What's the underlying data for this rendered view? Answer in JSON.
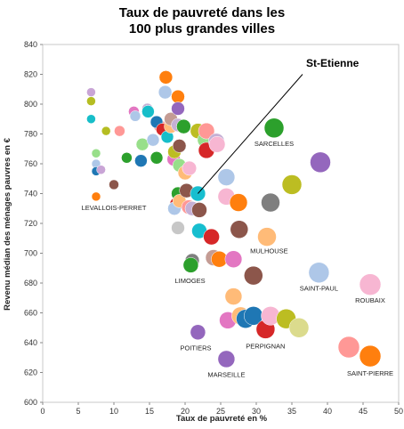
{
  "chart_data": {
    "type": "scatter",
    "title_lines": [
      "Taux de pauvreté dans les",
      "100 plus grandes villes"
    ],
    "xlabel": "Taux de pauvreté en %",
    "ylabel": "Revenu médian des ménages pauvres en €",
    "xlim": [
      0,
      50
    ],
    "ylim": [
      600,
      840
    ],
    "x_ticks": [
      0,
      5,
      10,
      15,
      20,
      25,
      30,
      35,
      40,
      45,
      50
    ],
    "y_ticks": [
      600,
      620,
      640,
      660,
      680,
      700,
      720,
      740,
      760,
      780,
      800,
      820,
      840
    ],
    "grid": false,
    "points": [
      {
        "x": 6.8,
        "y": 808,
        "r": 5,
        "color": "#c9a5d6"
      },
      {
        "x": 6.8,
        "y": 802,
        "r": 5,
        "color": "#b5bd22"
      },
      {
        "x": 6.8,
        "y": 790,
        "r": 5,
        "color": "#17bec9"
      },
      {
        "x": 7.5,
        "y": 767,
        "r": 5,
        "color": "#98df8a"
      },
      {
        "x": 7.5,
        "y": 760,
        "r": 5,
        "color": "#aec7e8"
      },
      {
        "x": 7.5,
        "y": 755,
        "r": 5,
        "color": "#1f77b4"
      },
      {
        "x": 8.2,
        "y": 756,
        "r": 5,
        "color": "#c9a5d6"
      },
      {
        "x": 7.5,
        "y": 738,
        "r": 5,
        "color": "#ff7f0e"
      },
      {
        "x": 8.9,
        "y": 782,
        "r": 5,
        "color": "#b5bd22"
      },
      {
        "x": 10.0,
        "y": 746,
        "r": 5.5,
        "color": "#8c564b"
      },
      {
        "x": 10.8,
        "y": 782,
        "r": 6,
        "color": "#ff9896"
      },
      {
        "x": 11.8,
        "y": 764,
        "r": 6,
        "color": "#2ca02c"
      },
      {
        "x": 12.8,
        "y": 795,
        "r": 6,
        "color": "#e377c2"
      },
      {
        "x": 13.0,
        "y": 792,
        "r": 6,
        "color": "#aec7e8"
      },
      {
        "x": 13.8,
        "y": 762,
        "r": 7,
        "color": "#1f77b4"
      },
      {
        "x": 14.0,
        "y": 773,
        "r": 7,
        "color": "#98df8a"
      },
      {
        "x": 14.7,
        "y": 797,
        "r": 6,
        "color": "#c5b0d5"
      },
      {
        "x": 14.8,
        "y": 795,
        "r": 7,
        "color": "#17bec9"
      },
      {
        "x": 15.5,
        "y": 776,
        "r": 7,
        "color": "#aec7e8"
      },
      {
        "x": 16.0,
        "y": 764,
        "r": 7,
        "color": "#2ca02c"
      },
      {
        "x": 16.5,
        "y": 785,
        "r": 7,
        "color": "#ff9896"
      },
      {
        "x": 16.0,
        "y": 788,
        "r": 7,
        "color": "#1f77b4"
      },
      {
        "x": 16.8,
        "y": 783,
        "r": 7,
        "color": "#d62728"
      },
      {
        "x": 17.3,
        "y": 818,
        "r": 7.5,
        "color": "#ff7f0e"
      },
      {
        "x": 17.2,
        "y": 808,
        "r": 7.5,
        "color": "#aec7e8"
      },
      {
        "x": 17.5,
        "y": 778,
        "r": 7,
        "color": "#17bec9"
      },
      {
        "x": 18.0,
        "y": 785,
        "r": 7.5,
        "color": "#ffbb78"
      },
      {
        "x": 18.0,
        "y": 790,
        "r": 7.5,
        "color": "#c49c94"
      },
      {
        "x": 18.4,
        "y": 763,
        "r": 7.5,
        "color": "#e377c2"
      },
      {
        "x": 18.5,
        "y": 768,
        "r": 7.5,
        "color": "#bcbd22"
      },
      {
        "x": 19.0,
        "y": 805,
        "r": 7.5,
        "color": "#ff7f0e"
      },
      {
        "x": 19.0,
        "y": 797,
        "r": 7.5,
        "color": "#9467bd"
      },
      {
        "x": 19.0,
        "y": 786,
        "r": 7.5,
        "color": "#c5b0d5"
      },
      {
        "x": 19.2,
        "y": 772,
        "r": 7.5,
        "color": "#8c564b"
      },
      {
        "x": 19.2,
        "y": 759,
        "r": 7.5,
        "color": "#98df8a"
      },
      {
        "x": 19.0,
        "y": 740,
        "r": 7.5,
        "color": "#2ca02c"
      },
      {
        "x": 18.8,
        "y": 733,
        "r": 7.5,
        "color": "#d62728"
      },
      {
        "x": 18.5,
        "y": 730,
        "r": 7.5,
        "color": "#aec7e8"
      },
      {
        "x": 19.2,
        "y": 735,
        "r": 7.5,
        "color": "#ffbb78"
      },
      {
        "x": 19.0,
        "y": 717,
        "r": 7.5,
        "color": "#c7c7c7"
      },
      {
        "x": 19.8,
        "y": 785,
        "r": 8,
        "color": "#2ca02c"
      },
      {
        "x": 20.0,
        "y": 754,
        "r": 8,
        "color": "#ffbb78"
      },
      {
        "x": 20.2,
        "y": 742,
        "r": 8,
        "color": "#8c564b"
      },
      {
        "x": 20.5,
        "y": 731,
        "r": 8,
        "color": "#ff9896"
      },
      {
        "x": 20.6,
        "y": 757,
        "r": 8,
        "color": "#f7b6d2"
      },
      {
        "x": 21.0,
        "y": 730,
        "r": 8,
        "color": "#c5b0d5"
      },
      {
        "x": 21.0,
        "y": 695,
        "r": 8,
        "color": "#7f7f7f"
      },
      {
        "x": 20.8,
        "y": 692,
        "r": 8.5,
        "color": "#2ca02c"
      },
      {
        "x": 21.8,
        "y": 782,
        "r": 8.5,
        "color": "#bcbd22"
      },
      {
        "x": 21.8,
        "y": 740,
        "r": 8.5,
        "color": "#17becf"
      },
      {
        "x": 22.0,
        "y": 729,
        "r": 8.5,
        "color": "#8c564b"
      },
      {
        "x": 22.0,
        "y": 715,
        "r": 8.5,
        "color": "#17becf"
      },
      {
        "x": 22.8,
        "y": 776,
        "r": 8.5,
        "color": "#98df8a"
      },
      {
        "x": 23.0,
        "y": 782,
        "r": 9,
        "color": "#ff9896"
      },
      {
        "x": 23.0,
        "y": 769,
        "r": 9,
        "color": "#d62728"
      },
      {
        "x": 23.7,
        "y": 711,
        "r": 9,
        "color": "#d62728"
      },
      {
        "x": 24.0,
        "y": 697,
        "r": 9,
        "color": "#c49c94"
      },
      {
        "x": 24.4,
        "y": 775,
        "r": 9,
        "color": "#c5b0d5"
      },
      {
        "x": 24.5,
        "y": 773,
        "r": 9,
        "color": "#f7b6d2"
      },
      {
        "x": 24.8,
        "y": 696,
        "r": 9,
        "color": "#ff7f0e"
      },
      {
        "x": 25.8,
        "y": 751,
        "r": 9.5,
        "color": "#aec7e8"
      },
      {
        "x": 25.8,
        "y": 738,
        "r": 9.5,
        "color": "#f7b6d2"
      },
      {
        "x": 26.0,
        "y": 655,
        "r": 9.5,
        "color": "#e377c2"
      },
      {
        "x": 26.8,
        "y": 671,
        "r": 9.5,
        "color": "#ffbb78"
      },
      {
        "x": 26.8,
        "y": 696,
        "r": 9.5,
        "color": "#e377c2"
      },
      {
        "x": 27.5,
        "y": 734,
        "r": 10,
        "color": "#ff7f0e"
      },
      {
        "x": 27.6,
        "y": 716,
        "r": 10,
        "color": "#8c564b"
      },
      {
        "x": 27.8,
        "y": 658,
        "r": 10,
        "color": "#ffbb78"
      },
      {
        "x": 28.5,
        "y": 656,
        "r": 10.5,
        "color": "#1f77b4"
      },
      {
        "x": 29.6,
        "y": 685,
        "r": 10.5,
        "color": "#8c564b"
      },
      {
        "x": 29.6,
        "y": 658,
        "r": 10.5,
        "color": "#1f77b4"
      },
      {
        "x": 31.3,
        "y": 649,
        "r": 10.5,
        "color": "#d62728"
      },
      {
        "x": 31.5,
        "y": 711,
        "r": 10.5,
        "color": "#ffbb78"
      },
      {
        "x": 32.0,
        "y": 734,
        "r": 10.5,
        "color": "#7f7f7f"
      },
      {
        "x": 32.0,
        "y": 658,
        "r": 10.5,
        "color": "#f7b6d2"
      },
      {
        "x": 32.5,
        "y": 784,
        "r": 11,
        "color": "#2ca02c"
      },
      {
        "x": 34.2,
        "y": 656,
        "r": 11,
        "color": "#bcbd22"
      },
      {
        "x": 35.0,
        "y": 746,
        "r": 11,
        "color": "#bcbd22"
      },
      {
        "x": 36.0,
        "y": 650,
        "r": 11,
        "color": "#dbdb8d"
      },
      {
        "x": 39.0,
        "y": 761,
        "r": 11.5,
        "color": "#9467bd"
      },
      {
        "x": 38.8,
        "y": 687,
        "r": 11.5,
        "color": "#aec7e8"
      },
      {
        "x": 43.0,
        "y": 637,
        "r": 12,
        "color": "#ff9896"
      },
      {
        "x": 46.0,
        "y": 679,
        "r": 12,
        "color": "#f7b6d2"
      },
      {
        "x": 46.0,
        "y": 631,
        "r": 12,
        "color": "#ff7f0e"
      },
      {
        "x": 21.8,
        "y": 647,
        "r": 8.5,
        "color": "#9467bd"
      },
      {
        "x": 25.8,
        "y": 629,
        "r": 9.5,
        "color": "#9467bd"
      }
    ],
    "city_labels": [
      {
        "text": "LEVALLOIS-PERRET",
        "x": 10.0,
        "y": 729
      },
      {
        "text": "SARCELLES",
        "x": 32.5,
        "y": 772
      },
      {
        "text": "MULHOUSE",
        "x": 31.8,
        "y": 700
      },
      {
        "text": "LIMOGES",
        "x": 20.7,
        "y": 680
      },
      {
        "text": "SAINT-PAUL",
        "x": 38.8,
        "y": 675
      },
      {
        "text": "ROUBAIX",
        "x": 46.0,
        "y": 667
      },
      {
        "text": "POITIERS",
        "x": 21.5,
        "y": 635
      },
      {
        "text": "PERPIGNAN",
        "x": 31.3,
        "y": 636
      },
      {
        "text": "MARSEILLE",
        "x": 25.8,
        "y": 617
      },
      {
        "text": "SAINT-PIERRE",
        "x": 46.0,
        "y": 618
      }
    ],
    "annotation": {
      "text": "St-Etienne",
      "label_x": 37.0,
      "label_y": 825,
      "line_from": {
        "x": 36.5,
        "y": 820
      },
      "line_to": {
        "x": 21.8,
        "y": 740
      }
    }
  }
}
